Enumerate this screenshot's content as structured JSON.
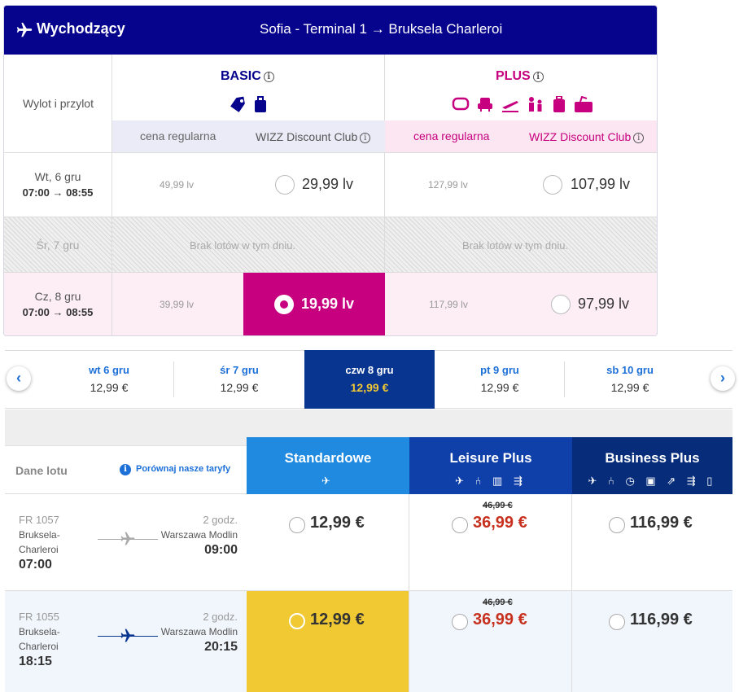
{
  "wizz": {
    "header": {
      "direction": "Wychodzący",
      "route": "Sofia - Terminal 1 → Bruksela Charleroi"
    },
    "label_col": "Wylot i przylot",
    "fares": [
      {
        "name": "BASIC",
        "icons": [
          "tag-icon",
          "small-bag-icon"
        ],
        "color": "#06038d"
      },
      {
        "name": "PLUS",
        "icons": [
          "seat-icon",
          "armchair-icon",
          "plane-takeoff-icon",
          "family-icon",
          "trolley-bag-icon",
          "checked-bag-icon"
        ],
        "color": "#c6007e"
      }
    ],
    "sub_regular": "cena regularna",
    "sub_club": "WIZZ Discount Club",
    "no_flights": "Brak lotów w tym dniu.",
    "rows": [
      {
        "date": "Wt, 6 gru",
        "times": "07:00 → 08:55",
        "basic_reg": "49,99 lv",
        "basic_club": "29,99 lv",
        "plus_reg": "127,99 lv",
        "plus_club": "107,99 lv"
      },
      {
        "date": "Śr, 7 gru"
      },
      {
        "date": "Cz, 8 gru",
        "times": "07:00 → 08:55",
        "basic_reg": "39,99 lv",
        "basic_club": "19,99 lv",
        "plus_reg": "117,99 lv",
        "plus_club": "97,99 lv"
      }
    ],
    "colors": {
      "navy": "#06038d",
      "magenta": "#c6007e",
      "basic_sub_bg": "#ebebf8",
      "plus_sub_bg": "#fbe6f2",
      "selected_row_bg": "#fdeef5"
    }
  },
  "ryanair": {
    "date_tabs": [
      {
        "day": "wt 6 gru",
        "price": "12,99 €"
      },
      {
        "day": "śr 7 gru",
        "price": "12,99 €"
      },
      {
        "day": "czw 8 gru",
        "price": "12,99 €",
        "selected": true
      },
      {
        "day": "pt 9 gru",
        "price": "12,99 €"
      },
      {
        "day": "sb 10 gru",
        "price": "12,99 €"
      }
    ],
    "flight_info_label": "Dane lotu",
    "compare_label": "Porównaj nasze taryfy",
    "tiers": [
      {
        "name": "Standardowe",
        "color": "#1f8ae0",
        "icons": "✈"
      },
      {
        "name": "Leisure Plus",
        "color": "#0f3fa8",
        "icons": "✈ ⑃ ▥ ⇶"
      },
      {
        "name": "Business Plus",
        "color": "#072c7a",
        "icons": "✈ ⑃ ◷ ▣ ⇗ ⇶ ▯"
      }
    ],
    "flights": [
      {
        "code": "FR 1057",
        "from_line1": "Bruksela-",
        "from_line2": "Charleroi",
        "dep": "07:00",
        "duration": "2 godz.",
        "to": "Warszawa Modlin",
        "arr": "09:00",
        "standard": "12,99 €",
        "leisure_old": "46,99 €",
        "leisure": "36,99 €",
        "business": "116,99 €"
      },
      {
        "code": "FR 1055",
        "from_line1": "Bruksela-",
        "from_line2": "Charleroi",
        "dep": "18:15",
        "duration": "2 godz.",
        "to": "Warszawa Modlin",
        "arr": "20:15",
        "standard": "12,99 €",
        "leisure_old": "46,99 €",
        "leisure": "36,99 €",
        "business": "116,99 €"
      }
    ],
    "colors": {
      "selected_tab": "#073590",
      "selected_tab_price": "#f1c933",
      "selected_fare_bg": "#f1c933",
      "price_red": "#c8301e",
      "link_blue": "#1d70d8"
    }
  }
}
